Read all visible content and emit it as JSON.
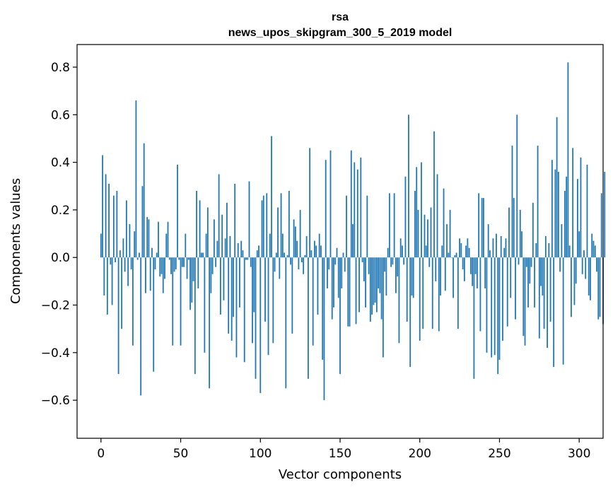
{
  "chart_data": {
    "type": "bar",
    "title": "rsa",
    "subtitle": "news_upos_skipgram_300_5_2019 model",
    "xlabel": "Vector components",
    "ylabel": "Components values",
    "xlim": [
      -15,
      315
    ],
    "ylim": [
      -0.76,
      0.895
    ],
    "xticks": [
      0,
      50,
      100,
      150,
      200,
      250,
      300
    ],
    "yticks": [
      -0.6,
      -0.4,
      -0.2,
      0.0,
      0.2,
      0.4,
      0.6,
      0.8
    ],
    "ytick_labels": [
      "−0.6",
      "−0.4",
      "−0.2",
      "0.0",
      "0.2",
      "0.4",
      "0.6",
      "0.8"
    ],
    "bar_color": "#1f77b4",
    "grid": false,
    "legend": "none",
    "values": [
      0.1,
      0.43,
      -0.16,
      0.35,
      -0.24,
      0.31,
      -0.03,
      -0.2,
      0.26,
      -0.02,
      0.28,
      -0.49,
      0.03,
      -0.3,
      0.08,
      -0.06,
      0.24,
      -0.12,
      0.14,
      -0.05,
      -0.37,
      0.11,
      0.66,
      -0.01,
      0.02,
      -0.58,
      0.3,
      0.48,
      -0.15,
      0.17,
      0.16,
      -0.14,
      0.04,
      -0.48,
      -0.05,
      0.02,
      0.15,
      -0.08,
      -0.07,
      -0.15,
      -0.09,
      0.1,
      0.15,
      -0.01,
      -0.07,
      -0.37,
      -0.06,
      -0.05,
      0.39,
      -0.01,
      -0.37,
      -0.04,
      -0.04,
      0.1,
      -0.09,
      -0.01,
      -0.22,
      -0.19,
      -0.1,
      -0.49,
      0.28,
      -0.13,
      0.24,
      0.02,
      0.02,
      -0.4,
      0.1,
      0.21,
      -0.55,
      -0.15,
      -0.07,
      0.16,
      -0.04,
      0.07,
      0.35,
      -0.24,
      0.18,
      -0.18,
      0.08,
      0.23,
      -0.32,
      0.09,
      -0.35,
      -0.25,
      0.31,
      -0.42,
      0.06,
      -0.21,
      0.07,
      0.03,
      -0.44,
      -0.01,
      -0.01,
      0.32,
      -0.04,
      -0.36,
      -0.23,
      -0.51,
      0.03,
      0.05,
      -0.57,
      0.24,
      0.26,
      -0.27,
      0.27,
      -0.41,
      0.1,
      0.51,
      -0.36,
      -0.06,
      0.02,
      0.21,
      -0.09,
      0.27,
      0.1,
      0.02,
      -0.55,
      0.01,
      0.28,
      -0.03,
      -0.32,
      0.16,
      0.13,
      0.07,
      -0.05,
      0.2,
      -0.02,
      -0.07,
      0.01,
      0.09,
      -0.51,
      0.46,
      0.03,
      -0.37,
      0.07,
      0.05,
      -0.24,
      0.1,
      0.05,
      -0.43,
      -0.6,
      0.41,
      -0.13,
      -0.05,
      0.45,
      -0.26,
      -0.21,
      -0.03,
      0.04,
      -0.17,
      -0.49,
      -0.13,
      0.02,
      -0.06,
      0.26,
      -0.29,
      -0.29,
      0.45,
      0.14,
      0.4,
      -0.28,
      0.37,
      -0.23,
      0.42,
      -0.02,
      -0.1,
      -0.21,
      0.26,
      -0.07,
      -0.27,
      -0.24,
      -0.2,
      -0.19,
      -0.23,
      -0.13,
      -0.15,
      -0.26,
      -0.42,
      -0.06,
      -0.16,
      0.04,
      0.27,
      -0.04,
      -0.03,
      0.27,
      -0.15,
      -0.08,
      -0.36,
      0.08,
      0.05,
      -0.03,
      0.34,
      -0.27,
      0.6,
      -0.46,
      -0.16,
      -0.17,
      0.28,
      0.38,
      0.2,
      -0.35,
      0.4,
      -0.3,
      0.18,
      0.05,
      0.16,
      -0.04,
      0.21,
      -0.3,
      0.53,
      -0.1,
      0.35,
      -0.31,
      -0.16,
      0.05,
      0.29,
      -0.14,
      0.14,
      0.02,
      0.2,
      0.0,
      -0.17,
      0.01,
      0.02,
      -0.3,
      0.08,
      0.06,
      -0.05,
      -0.1,
      0.05,
      0.08,
      0.04,
      -0.07,
      -0.12,
      -0.51,
      -0.07,
      -0.13,
      0.27,
      -0.31,
      0.25,
      0.25,
      -0.13,
      -0.4,
      0.14,
      0.03,
      -0.42,
      0.08,
      -0.41,
      0.1,
      -0.49,
      -0.43,
      0.09,
      -0.35,
      0.04,
      0.08,
      -0.29,
      0.21,
      -0.17,
      0.47,
      0.25,
      -0.26,
      0.6,
      -0.03,
      0.2,
      0.11,
      -0.33,
      -0.37,
      -0.04,
      -0.21,
      -0.11,
      -0.04,
      0.23,
      -0.21,
      0.06,
      0.47,
      -0.34,
      -0.12,
      -0.16,
      -0.3,
      0.09,
      -0.38,
      0.06,
      -0.27,
      0.41,
      -0.46,
      0.37,
      0.59,
      0.36,
      -0.06,
      0.14,
      -0.45,
      0.28,
      0.34,
      0.82,
      0.05,
      -0.25,
      0.46,
      -0.2,
      -0.11,
      0.33,
      0.11,
      0.42,
      -0.07,
      0.03,
      -0.09,
      0.39,
      -0.16,
      -0.18,
      0.1,
      0.07,
      0.05,
      -0.06,
      -0.26,
      -0.25,
      0.27,
      -0.28,
      0.36
    ]
  }
}
